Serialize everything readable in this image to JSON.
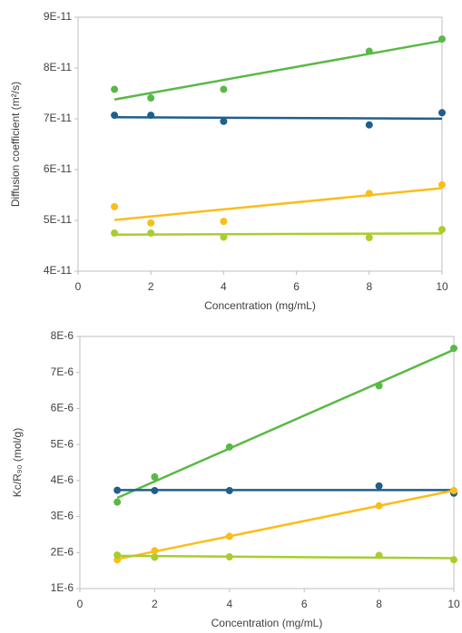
{
  "chart_data": [
    {
      "type": "scatter",
      "trendline": "linear",
      "y_label": "Diffusion coefficient (m²/s)",
      "x_label": "Concentration (mg/mL)",
      "x": [
        1,
        2,
        4,
        8,
        10
      ],
      "series": [
        {
          "color": "#5ab946",
          "values": [
            7.58e-11,
            7.41e-11,
            7.58e-11,
            8.33e-11,
            8.57e-11
          ]
        },
        {
          "color": "#1f5f8b",
          "values": [
            7.07e-11,
            7.07e-11,
            6.95e-11,
            6.88e-11,
            7.12e-11
          ]
        },
        {
          "color": "#fbbd1a",
          "values": [
            5.27e-11,
            4.95e-11,
            4.98e-11,
            5.53e-11,
            5.7e-11
          ]
        },
        {
          "color": "#a9cd2e",
          "values": [
            4.75e-11,
            4.75e-11,
            4.67e-11,
            4.66e-11,
            4.82e-11
          ]
        }
      ],
      "xlim": [
        0,
        10
      ],
      "xticks": [
        0,
        2,
        4,
        6,
        8,
        10
      ],
      "ylim": [
        4e-11,
        9e-11
      ],
      "yticks": [
        {
          "value": 4e-11,
          "label": "4E-11"
        },
        {
          "value": 5e-11,
          "label": "5E-11"
        },
        {
          "value": 6e-11,
          "label": "6E-11"
        },
        {
          "value": 7e-11,
          "label": "7E-11"
        },
        {
          "value": 8e-11,
          "label": "8E-11"
        },
        {
          "value": 9e-11,
          "label": "9E-11"
        }
      ]
    },
    {
      "type": "scatter",
      "trendline": "linear",
      "y_label": "Kc/R₉₀ (mol/g)",
      "x_label": "Concentration (mg/mL)",
      "x": [
        1,
        2,
        4,
        8,
        10
      ],
      "series": [
        {
          "color": "#5ab946",
          "values": [
            3.4e-06,
            4.1e-06,
            4.93e-06,
            6.63e-06,
            7.67e-06
          ]
        },
        {
          "color": "#1f5f8b",
          "values": [
            3.73e-06,
            3.72e-06,
            3.72e-06,
            3.85e-06,
            3.65e-06
          ]
        },
        {
          "color": "#fbbd1a",
          "values": [
            1.8e-06,
            2.05e-06,
            2.45e-06,
            3.3e-06,
            3.72e-06
          ]
        },
        {
          "color": "#a9cd2e",
          "values": [
            1.93e-06,
            1.87e-06,
            1.88e-06,
            1.92e-06,
            1.8e-06
          ]
        }
      ],
      "xlim": [
        0,
        10
      ],
      "xticks": [
        0,
        2,
        4,
        6,
        8,
        10
      ],
      "ylim": [
        1e-06,
        8e-06
      ],
      "yticks": [
        {
          "value": 1e-06,
          "label": "1E-6"
        },
        {
          "value": 2e-06,
          "label": "2E-6"
        },
        {
          "value": 3e-06,
          "label": "3E-6"
        },
        {
          "value": 4e-06,
          "label": "4E-6"
        },
        {
          "value": 5e-06,
          "label": "5E-6"
        },
        {
          "value": 6e-06,
          "label": "6E-6"
        },
        {
          "value": 7e-06,
          "label": "7E-6"
        },
        {
          "value": 8e-06,
          "label": "8E-6"
        }
      ]
    }
  ]
}
